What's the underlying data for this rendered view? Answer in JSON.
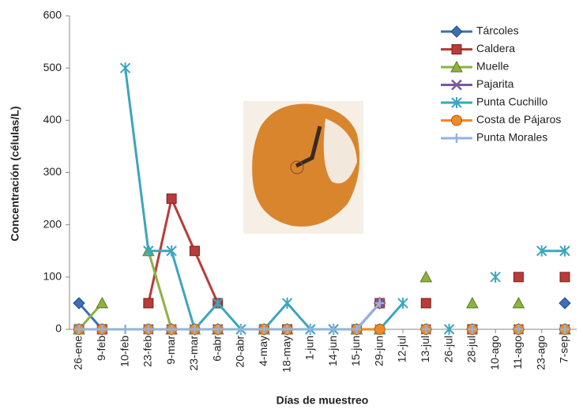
{
  "chart_data": {
    "type": "line",
    "x_label": "Días de muestreo",
    "y_label": "Concentración (células/L)",
    "categories": [
      "26-ene",
      "9-feb",
      "10-feb",
      "23-feb",
      "9-mar",
      "23-mar",
      "6-abr",
      "20-abr",
      "4-may",
      "18-may",
      "1-jun",
      "14-jun",
      "15-jun",
      "29-jun",
      "12-jul",
      "13-jul",
      "26-jul",
      "28-jul",
      "10-ago",
      "11-ago",
      "23-ago",
      "7-sep"
    ],
    "ylim": [
      0,
      600
    ],
    "yticks": [
      0,
      100,
      200,
      300,
      400,
      500,
      600
    ],
    "legend": "top-right",
    "series": [
      {
        "name": "Tárcoles",
        "color": "#3b6fb6",
        "marker": "diamond",
        "values": [
          50,
          0,
          null,
          0,
          0,
          0,
          0,
          null,
          0,
          0,
          null,
          null,
          0,
          50,
          null,
          0,
          null,
          0,
          null,
          0,
          null,
          50
        ]
      },
      {
        "name": "Caldera",
        "color": "#b83c3a",
        "marker": "square",
        "values": [
          0,
          0,
          null,
          50,
          250,
          150,
          50,
          null,
          0,
          0,
          null,
          null,
          0,
          50,
          null,
          50,
          null,
          0,
          null,
          100,
          null,
          100
        ]
      },
      {
        "name": "Muelle",
        "color": "#8db23f",
        "marker": "triangle",
        "values": [
          0,
          50,
          null,
          150,
          0,
          0,
          0,
          null,
          0,
          0,
          null,
          null,
          0,
          0,
          null,
          100,
          null,
          50,
          null,
          50,
          null,
          0
        ]
      },
      {
        "name": "Pajarita",
        "color": "#7a56a0",
        "marker": "x",
        "values": [
          0,
          0,
          null,
          0,
          0,
          0,
          0,
          null,
          0,
          0,
          null,
          null,
          0,
          50,
          null,
          0,
          null,
          0,
          null,
          0,
          null,
          0
        ]
      },
      {
        "name": "Punta Cuchillo",
        "color": "#3ba6bd",
        "marker": "star",
        "values": [
          0,
          null,
          500,
          150,
          150,
          0,
          50,
          0,
          0,
          50,
          0,
          0,
          0,
          0,
          50,
          null,
          0,
          null,
          100,
          null,
          150,
          150
        ]
      },
      {
        "name": "Costa de Pájaros",
        "color": "#f08a24",
        "marker": "circle",
        "values": [
          0,
          0,
          null,
          0,
          0,
          0,
          0,
          null,
          0,
          0,
          null,
          null,
          0,
          0,
          null,
          0,
          null,
          0,
          null,
          0,
          null,
          0
        ]
      },
      {
        "name": "Punta Morales",
        "color": "#93b3dc",
        "marker": "plus",
        "values": [
          0,
          0,
          0,
          0,
          0,
          0,
          0,
          0,
          0,
          0,
          0,
          0,
          0,
          50,
          null,
          0,
          null,
          0,
          null,
          0,
          null,
          0
        ]
      }
    ]
  }
}
